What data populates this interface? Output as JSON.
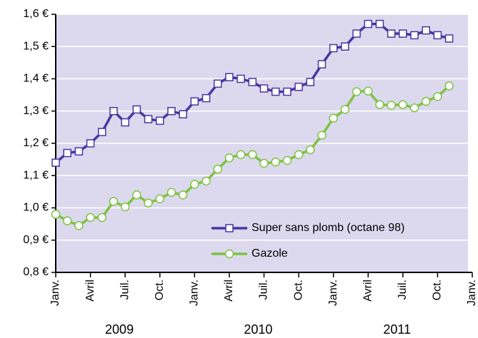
{
  "chart_data": {
    "type": "line",
    "x": [
      0,
      1,
      2,
      3,
      4,
      5,
      6,
      7,
      8,
      9,
      10,
      11,
      12,
      13,
      14,
      15,
      16,
      17,
      18,
      19,
      20,
      21,
      22,
      23,
      24,
      25,
      26,
      27,
      28,
      29,
      30,
      31,
      32,
      33,
      34
    ],
    "xlim": [
      0,
      36
    ],
    "xticks": [
      {
        "value": 0,
        "label": "Janv."
      },
      {
        "value": 3,
        "label": "Avril"
      },
      {
        "value": 6,
        "label": "Juil."
      },
      {
        "value": 9,
        "label": "Oct."
      },
      {
        "value": 12,
        "label": "Janv."
      },
      {
        "value": 15,
        "label": "Avril"
      },
      {
        "value": 18,
        "label": "Juil."
      },
      {
        "value": 21,
        "label": "Oct."
      },
      {
        "value": 24,
        "label": "Janv."
      },
      {
        "value": 27,
        "label": "Avril"
      },
      {
        "value": 30,
        "label": "Juil."
      },
      {
        "value": 33,
        "label": "Oct."
      },
      {
        "value": 36,
        "label": "Janv."
      }
    ],
    "years": [
      "2009",
      "2010",
      "2011"
    ],
    "ylim": [
      0.8,
      1.6
    ],
    "yticks": [
      {
        "value": 0.8,
        "label": "0,8 €"
      },
      {
        "value": 0.9,
        "label": "0,9 €"
      },
      {
        "value": 1.0,
        "label": "1,0 €"
      },
      {
        "value": 1.1,
        "label": "1,1 €"
      },
      {
        "value": 1.2,
        "label": "1,2 €"
      },
      {
        "value": 1.3,
        "label": "1,3 €"
      },
      {
        "value": 1.4,
        "label": "1,4 €"
      },
      {
        "value": 1.5,
        "label": "1,5 €"
      },
      {
        "value": 1.6,
        "label": "1,6 €"
      }
    ],
    "grid": true,
    "series": [
      {
        "name": "Super sans plomb (octane 98)",
        "color": "#4a35a0",
        "marker": "square",
        "values": [
          1.14,
          1.17,
          1.175,
          1.2,
          1.235,
          1.3,
          1.265,
          1.305,
          1.275,
          1.27,
          1.3,
          1.29,
          1.33,
          1.34,
          1.385,
          1.405,
          1.4,
          1.39,
          1.37,
          1.36,
          1.36,
          1.375,
          1.39,
          1.445,
          1.495,
          1.5,
          1.54,
          1.57,
          1.57,
          1.54,
          1.54,
          1.535,
          1.55,
          1.535,
          1.525
        ]
      },
      {
        "name": "Gazole",
        "color": "#7dc242",
        "marker": "circle",
        "values": [
          0.98,
          0.96,
          0.945,
          0.97,
          0.97,
          1.02,
          1.003,
          1.04,
          1.015,
          1.028,
          1.048,
          1.04,
          1.073,
          1.083,
          1.12,
          1.155,
          1.165,
          1.165,
          1.138,
          1.142,
          1.147,
          1.165,
          1.18,
          1.225,
          1.278,
          1.305,
          1.36,
          1.362,
          1.32,
          1.318,
          1.32,
          1.31,
          1.33,
          1.345,
          1.378
        ]
      }
    ]
  }
}
